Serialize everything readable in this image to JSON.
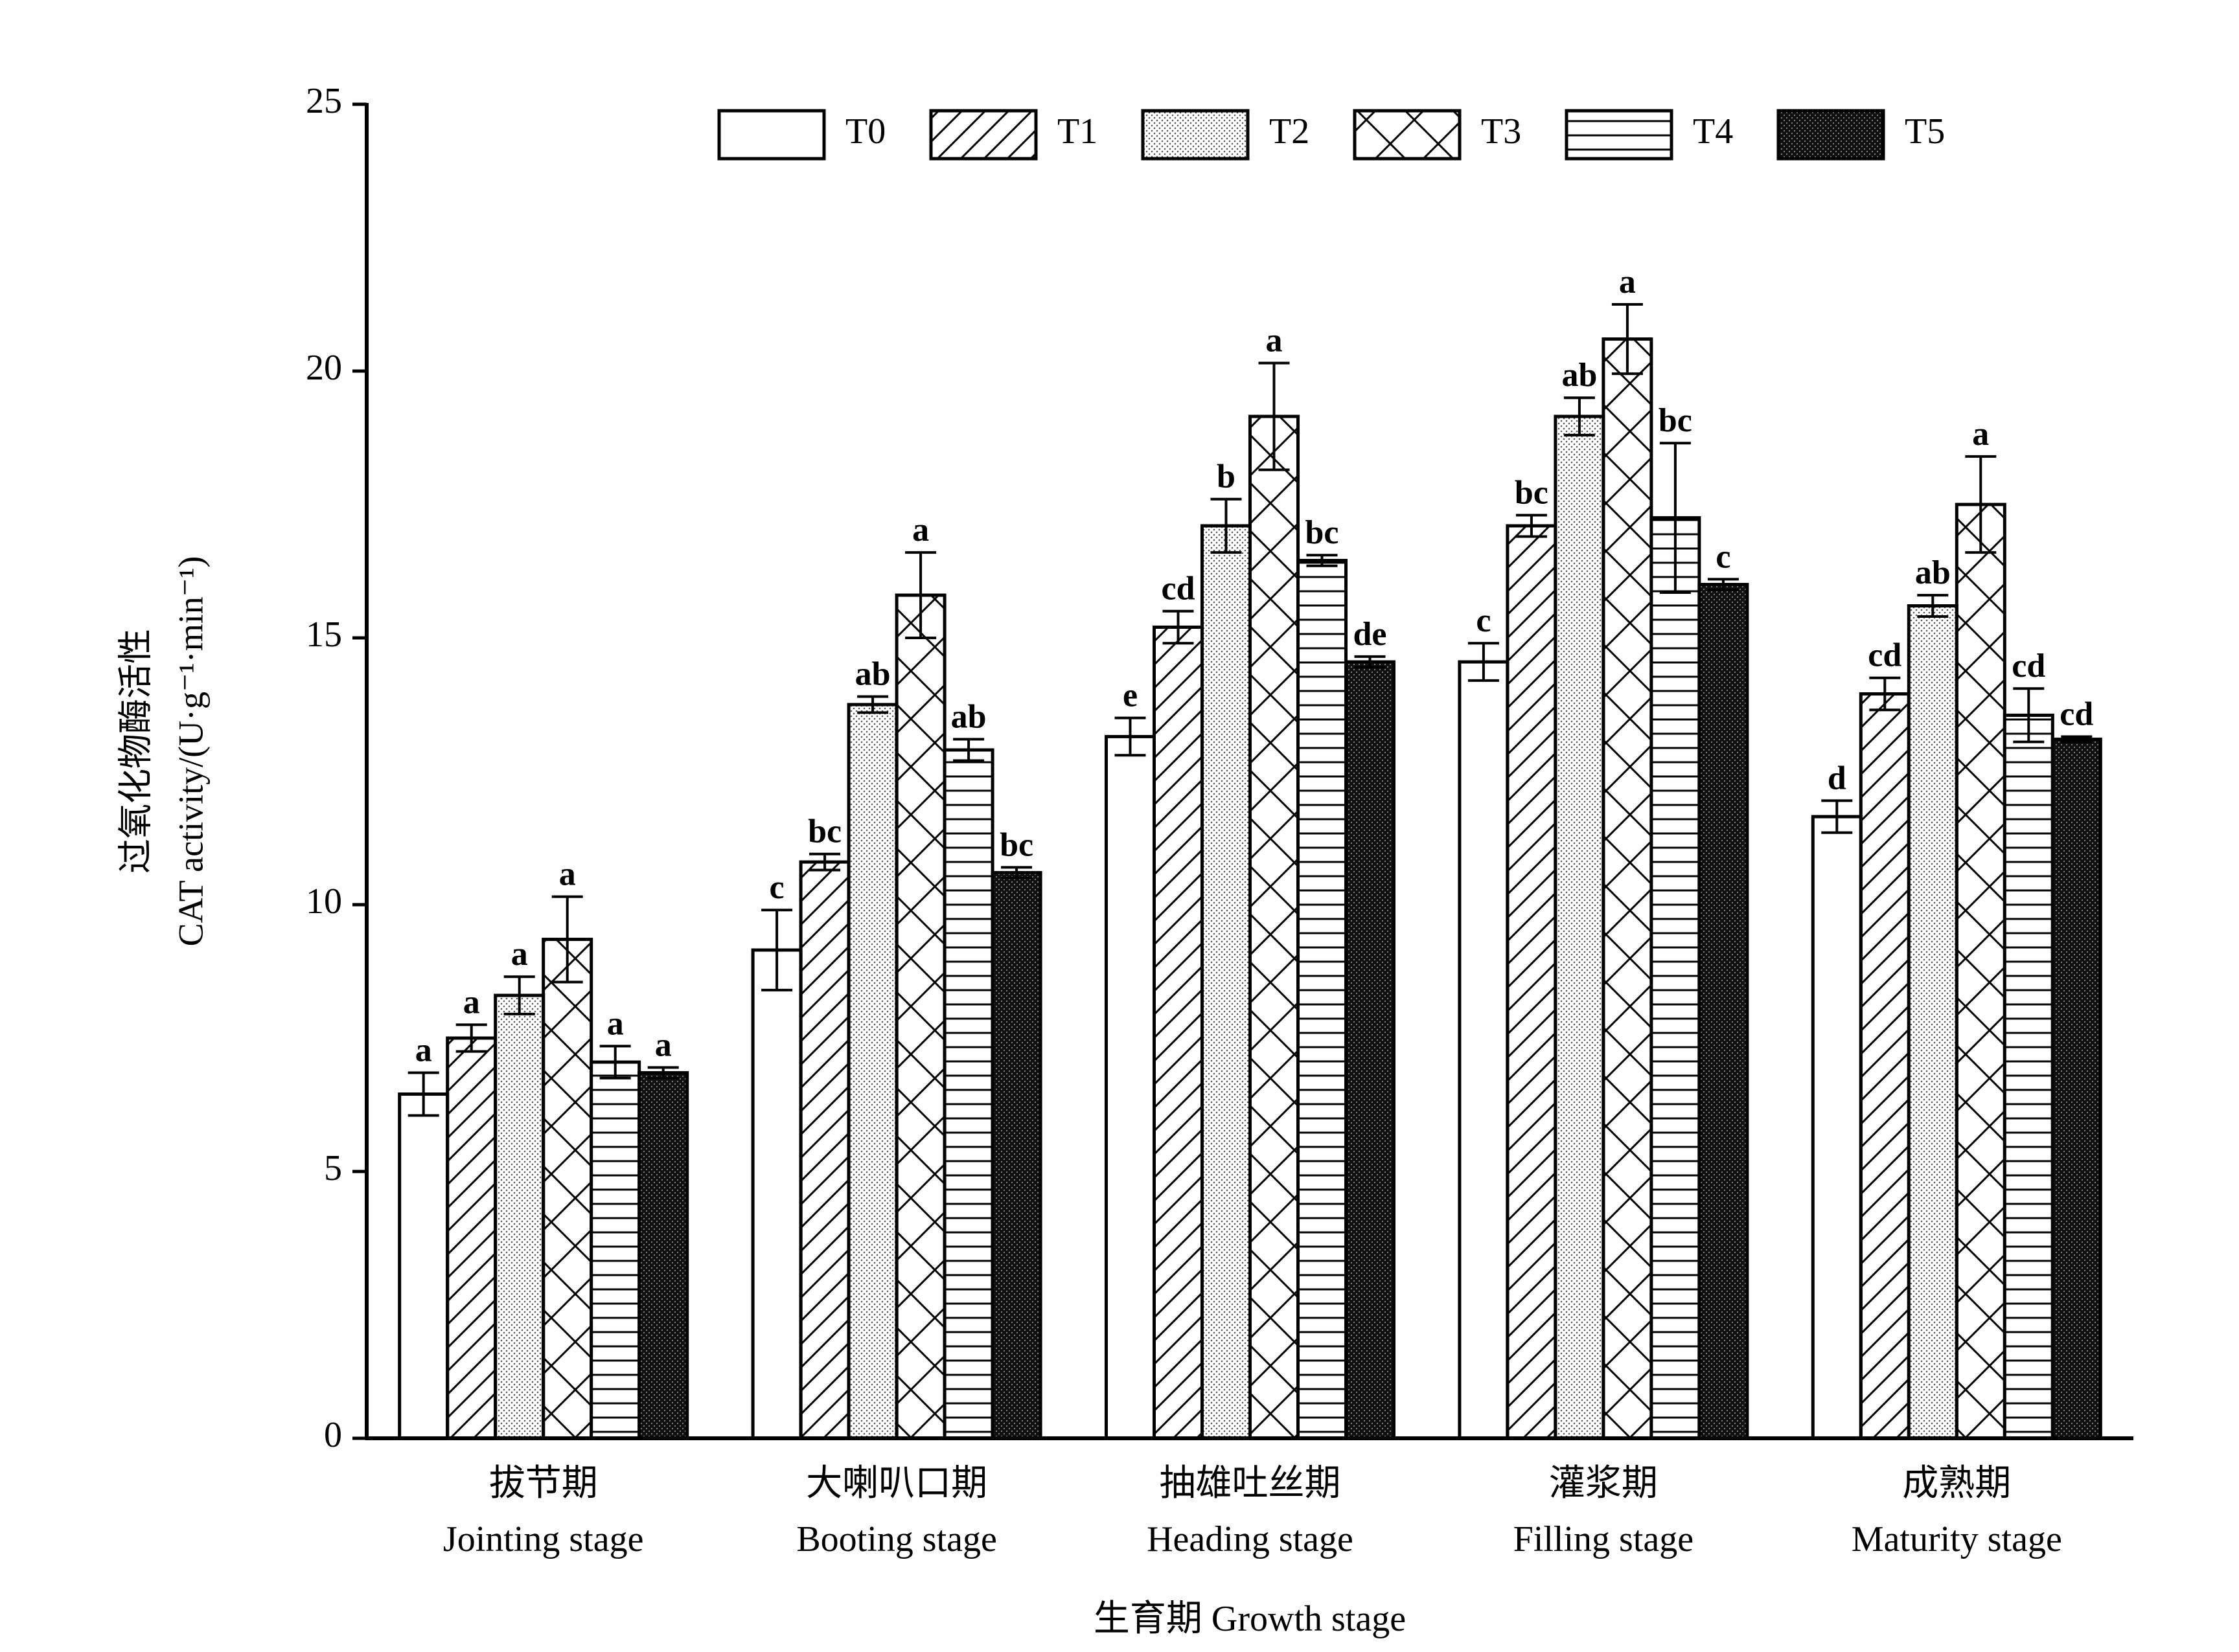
{
  "chart_data": {
    "type": "bar",
    "y_label": [
      "过氧化物酶活性",
      "CAT activity/(U·g⁻¹·min⁻¹)"
    ],
    "x_label": "生育期 Growth stage",
    "categories": [
      [
        "拔节期",
        "Jointing stage"
      ],
      [
        "大喇叭口期",
        "Booting stage"
      ],
      [
        "抽雄吐丝期",
        "Heading stage"
      ],
      [
        "灌浆期",
        "Filling stage"
      ],
      [
        "成熟期",
        "Maturity stage"
      ]
    ],
    "series": [
      {
        "name": "T0",
        "color": "#000000",
        "pattern": "none",
        "values": [
          6.45,
          9.15,
          13.15,
          14.55,
          11.65
        ],
        "errors": [
          0.4,
          0.75,
          0.35,
          0.35,
          0.3
        ],
        "letters": [
          "a",
          "c",
          "e",
          "c",
          "d"
        ]
      },
      {
        "name": "T1",
        "color": "#000000",
        "pattern": "diagonal",
        "values": [
          7.5,
          10.8,
          15.2,
          17.1,
          13.95
        ],
        "errors": [
          0.25,
          0.15,
          0.3,
          0.2,
          0.3
        ],
        "letters": [
          "a",
          "bc",
          "cd",
          "bc",
          "cd"
        ]
      },
      {
        "name": "T2",
        "color": "#000000",
        "pattern": "dots",
        "values": [
          8.3,
          13.75,
          17.1,
          19.15,
          15.6
        ],
        "errors": [
          0.35,
          0.15,
          0.5,
          0.35,
          0.2
        ],
        "letters": [
          "a",
          "ab",
          "b",
          "ab",
          "ab"
        ]
      },
      {
        "name": "T3",
        "color": "#000000",
        "pattern": "cross",
        "values": [
          9.35,
          15.8,
          19.15,
          20.6,
          17.5
        ],
        "errors": [
          0.8,
          0.8,
          1.0,
          0.65,
          0.9
        ],
        "letters": [
          "a",
          "a",
          "a",
          "a",
          "a"
        ]
      },
      {
        "name": "T4",
        "color": "#000000",
        "pattern": "horizontal",
        "values": [
          7.05,
          12.9,
          16.45,
          17.25,
          13.55
        ],
        "errors": [
          0.3,
          0.2,
          0.1,
          1.4,
          0.5
        ],
        "letters": [
          "a",
          "ab",
          "bc",
          "bc",
          "cd"
        ]
      },
      {
        "name": "T5",
        "color": "#000000",
        "pattern": "dense",
        "values": [
          6.85,
          10.6,
          14.55,
          16.0,
          13.1
        ],
        "errors": [
          0.1,
          0.1,
          0.1,
          0.1,
          0.05
        ],
        "letters": [
          "a",
          "bc",
          "de",
          "c",
          "cd"
        ]
      }
    ],
    "ylim": [
      0,
      25
    ],
    "yticks": [
      0,
      5,
      10,
      15,
      20,
      25
    ],
    "grid": false,
    "legend": "top"
  }
}
